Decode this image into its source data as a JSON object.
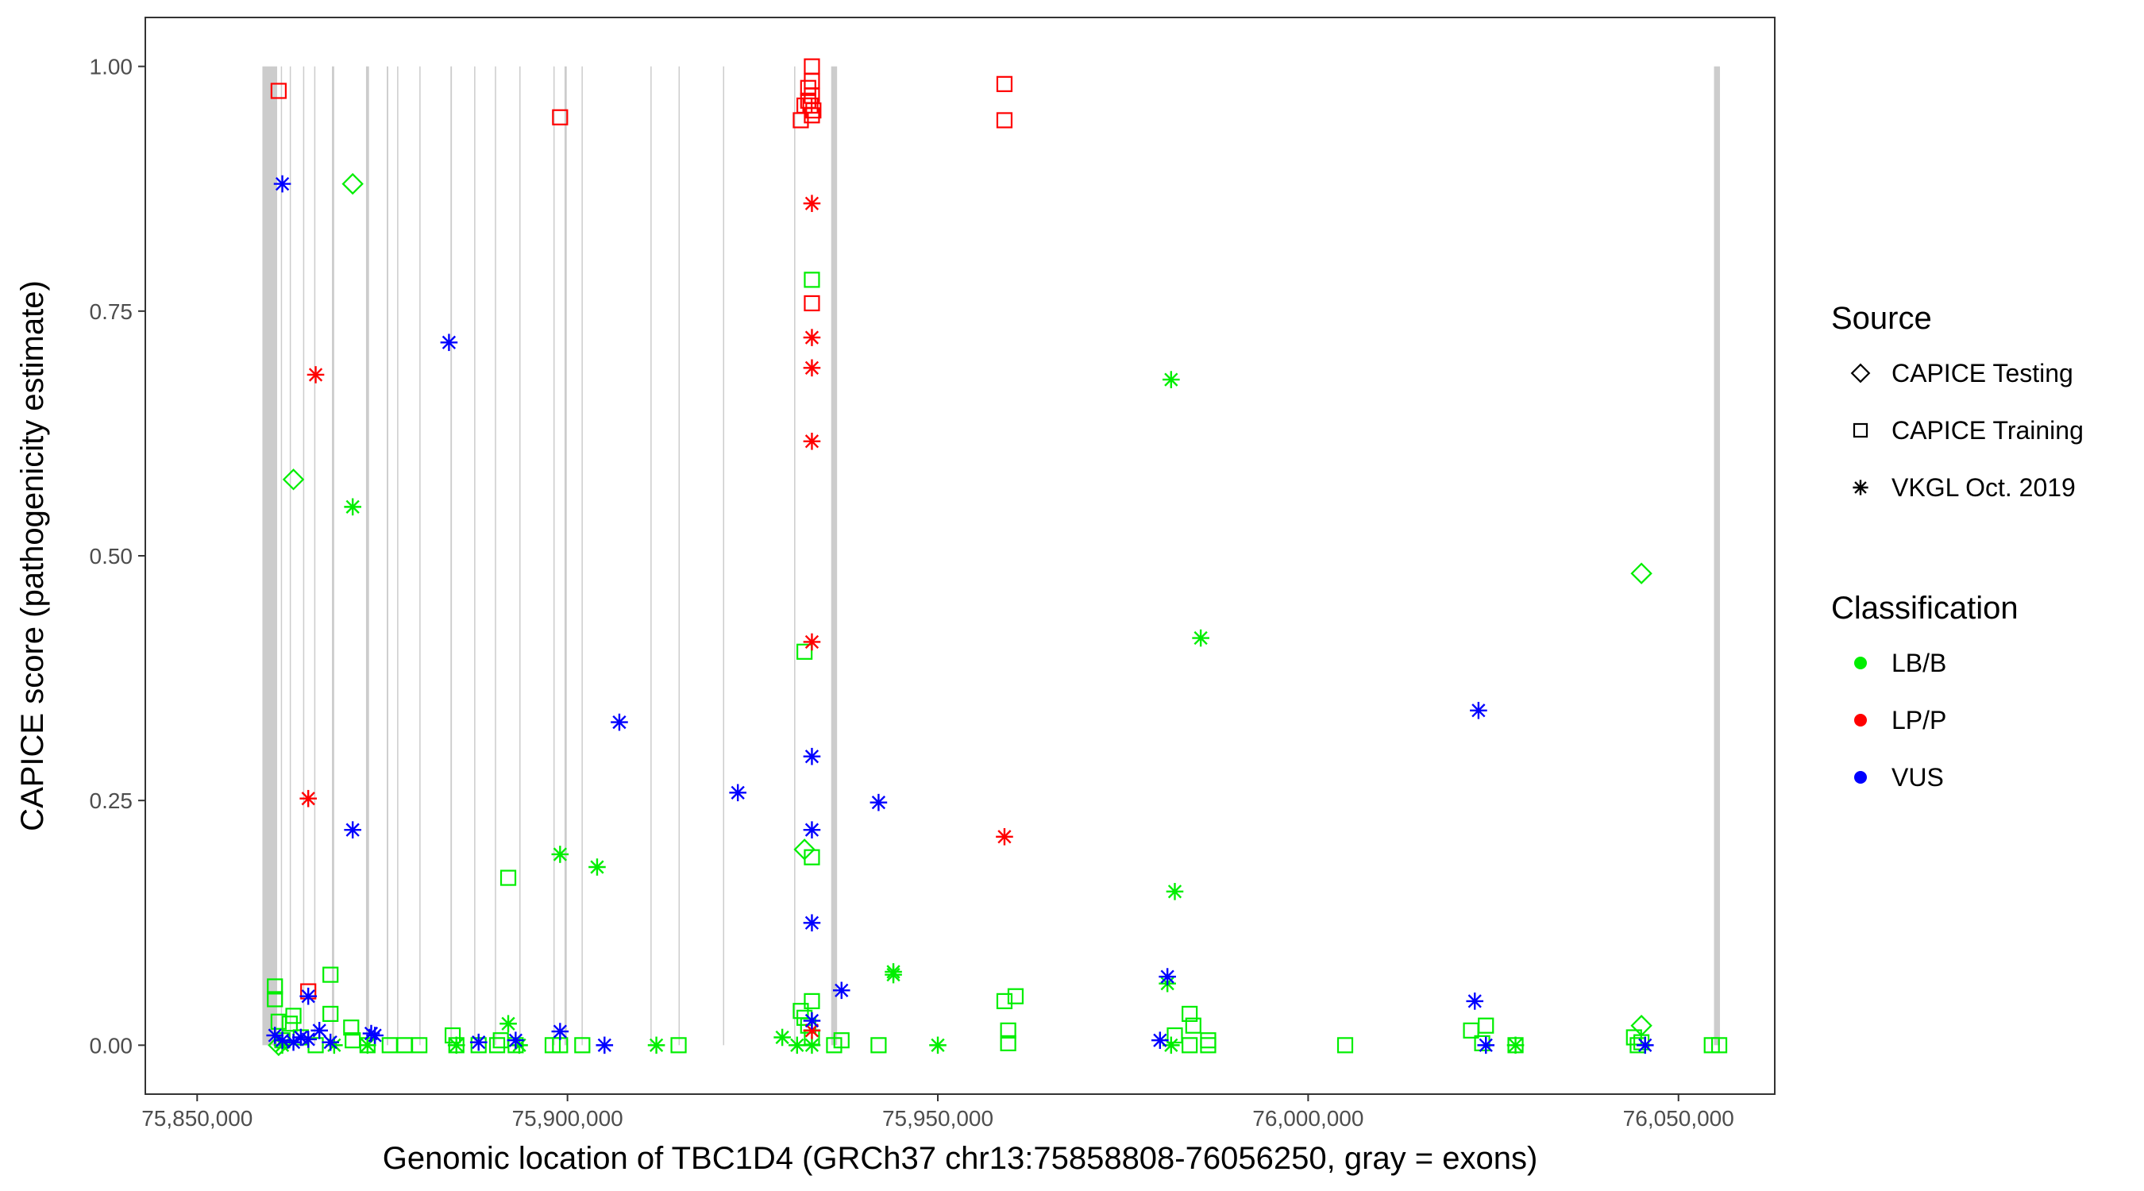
{
  "chart_data": {
    "type": "scatter",
    "xlabel": "Genomic location of TBC1D4 (GRCh37 chr13:75858808-76056250, gray = exons)",
    "ylabel": "CAPICE score (pathogenicity estimate)",
    "xlim": [
      75843000,
      76063000
    ],
    "ylim": [
      -0.05,
      1.05
    ],
    "x_ticks": [
      75850000,
      75900000,
      75950000,
      76000000,
      76050000
    ],
    "x_tick_labels": [
      "75,850,000",
      "75,900,000",
      "75,950,000",
      "76,000,000",
      "76,050,000"
    ],
    "y_ticks": [
      0,
      0.25,
      0.5,
      0.75,
      1.0
    ],
    "y_tick_labels": [
      "0.00",
      "0.25",
      "0.50",
      "0.75",
      "1.00"
    ],
    "grid": false,
    "legend_position": "right",
    "exon_bands": [
      [
        75858808,
        75860800
      ],
      [
        75861300,
        75861450
      ],
      [
        75862500,
        75862650
      ],
      [
        75864300,
        75864450
      ],
      [
        75865800,
        75865950
      ],
      [
        75868200,
        75868500
      ],
      [
        75872800,
        75873200
      ],
      [
        75875600,
        75875800
      ],
      [
        75877000,
        75877150
      ],
      [
        75880000,
        75880150
      ],
      [
        75884200,
        75884400
      ],
      [
        75887400,
        75887550
      ],
      [
        75890200,
        75890350
      ],
      [
        75893500,
        75893650
      ],
      [
        75898100,
        75898250
      ],
      [
        75899600,
        75899900
      ],
      [
        75901900,
        75902050
      ],
      [
        75911200,
        75911350
      ],
      [
        75915000,
        75915150
      ],
      [
        75921000,
        75921150
      ],
      [
        75930600,
        75930750
      ],
      [
        75935600,
        75936400
      ],
      [
        76054800,
        76055600
      ]
    ],
    "exon_color": "#cccccc",
    "legends": [
      {
        "title": "Source",
        "items": [
          {
            "label": "CAPICE Testing",
            "shape": "diamond"
          },
          {
            "label": "CAPICE Training",
            "shape": "square"
          },
          {
            "label": "VKGL Oct. 2019",
            "shape": "asterisk"
          }
        ]
      },
      {
        "title": "Classification",
        "items": [
          {
            "label": "LB/B",
            "color": "#00ee00"
          },
          {
            "label": "LP/P",
            "color": "#ff0000"
          },
          {
            "label": "VUS",
            "color": "#0000ff"
          }
        ]
      }
    ],
    "series": [
      {
        "source": "CAPICE Testing",
        "shape": "diamond",
        "classification": "LB/B",
        "color": "#00ee00",
        "x": [
          75871000,
          75863000,
          75932000,
          76045000,
          76045000,
          75861000
        ],
        "y": [
          0.88,
          0.578,
          0.2,
          0.482,
          0.02,
          0.0
        ]
      },
      {
        "source": "CAPICE Training",
        "shape": "square",
        "classification": "LB/B",
        "color": "#00ee00",
        "x": [
          75933000,
          75932000,
          75933000,
          75892000,
          75860500,
          75860500,
          75868000,
          75868000,
          75863000,
          75862500,
          75861000,
          75861500,
          75870800,
          75871000,
          75873000,
          75876000,
          75878000,
          75880000,
          75884500,
          75885000,
          75888000,
          75890500,
          75891000,
          75893000,
          75898000,
          75899000,
          75902000,
          75915000,
          75931500,
          75932000,
          75932500,
          75933000,
          75933000,
          75936000,
          75937000,
          75942000,
          75959000,
          75959500,
          75959500,
          75960500,
          75982000,
          75984000,
          75984500,
          75984000,
          75986500,
          75986500,
          76005000,
          76022000,
          76023500,
          76024000,
          76028000,
          76044000,
          76044500,
          76045000,
          76054500,
          76055500,
          75864000,
          75866000
        ],
        "y": [
          0.782,
          0.402,
          0.192,
          0.171,
          0.06,
          0.047,
          0.072,
          0.032,
          0.03,
          0.022,
          0.024,
          0.005,
          0.018,
          0.005,
          0.0,
          0.0,
          0.0,
          0.0,
          0.01,
          0.0,
          0.0,
          0.0,
          0.005,
          0.0,
          0.0,
          0.0,
          0.0,
          0.0,
          0.035,
          0.028,
          0.02,
          0.045,
          0.008,
          0.0,
          0.005,
          0.0,
          0.045,
          0.015,
          0.002,
          0.05,
          0.01,
          0.032,
          0.02,
          0.0,
          0.005,
          0.0,
          0.0,
          0.015,
          0.002,
          0.02,
          0.0,
          0.008,
          0.0,
          0.003,
          0.0,
          0.0,
          0.008,
          0.0
        ]
      },
      {
        "source": "CAPICE Training",
        "shape": "square",
        "classification": "LP/P",
        "color": "#ff0000",
        "x": [
          75861000,
          75899000,
          75933000,
          75933000,
          75932500,
          75933000,
          75932500,
          75932800,
          75932000,
          75933200,
          75931500,
          75933000,
          75933000,
          75959000,
          75959000,
          75865000
        ],
        "y": [
          0.975,
          0.948,
          1.0,
          0.985,
          0.978,
          0.97,
          0.965,
          0.96,
          0.96,
          0.955,
          0.945,
          0.95,
          0.758,
          0.982,
          0.945,
          0.055
        ]
      },
      {
        "source": "VKGL Oct. 2019",
        "shape": "asterisk",
        "classification": "LB/B",
        "color": "#00ee00",
        "x": [
          75871000,
          75899000,
          75904000,
          75892000,
          75944000,
          75944000,
          75929000,
          75950000,
          75912000,
          75981500,
          75982000,
          75985500,
          75981000,
          75981500,
          76028000,
          75861500,
          75868500,
          75873000,
          75885000,
          75893500,
          75931000,
          75933000
        ],
        "y": [
          0.55,
          0.195,
          0.182,
          0.022,
          0.075,
          0.072,
          0.008,
          0.0,
          0.0,
          0.68,
          0.157,
          0.416,
          0.063,
          0.0,
          0.0,
          0.0,
          0.0,
          0.0,
          0.0,
          0.0,
          0.0,
          0.0
        ]
      },
      {
        "source": "VKGL Oct. 2019",
        "shape": "asterisk",
        "classification": "LP/P",
        "color": "#ff0000",
        "x": [
          75866000,
          75865000,
          75933000,
          75933000,
          75933000,
          75933000,
          75933000,
          75959000,
          75933000
        ],
        "y": [
          0.685,
          0.252,
          0.86,
          0.723,
          0.692,
          0.617,
          0.412,
          0.213,
          0.015
        ]
      },
      {
        "source": "VKGL Oct. 2019",
        "shape": "asterisk",
        "classification": "VUS",
        "color": "#0000ff",
        "x": [
          75861500,
          75884000,
          75871000,
          75907000,
          75923000,
          75933000,
          75933000,
          75933000,
          75942000,
          75937000,
          75933000,
          76023000,
          76022500,
          75981000,
          75980000,
          76045500,
          76024000,
          75865000,
          75860500,
          75861500,
          75863000,
          75864000,
          75865000,
          75866500,
          75868000,
          75873500,
          75874000,
          75888000,
          75893000,
          75899000,
          75905000
        ],
        "y": [
          0.88,
          0.718,
          0.22,
          0.33,
          0.258,
          0.295,
          0.22,
          0.125,
          0.248,
          0.056,
          0.025,
          0.342,
          0.045,
          0.07,
          0.005,
          0.0,
          0.0,
          0.05,
          0.01,
          0.005,
          0.003,
          0.008,
          0.006,
          0.015,
          0.003,
          0.012,
          0.01,
          0.003,
          0.005,
          0.014,
          0.0
        ]
      }
    ]
  }
}
